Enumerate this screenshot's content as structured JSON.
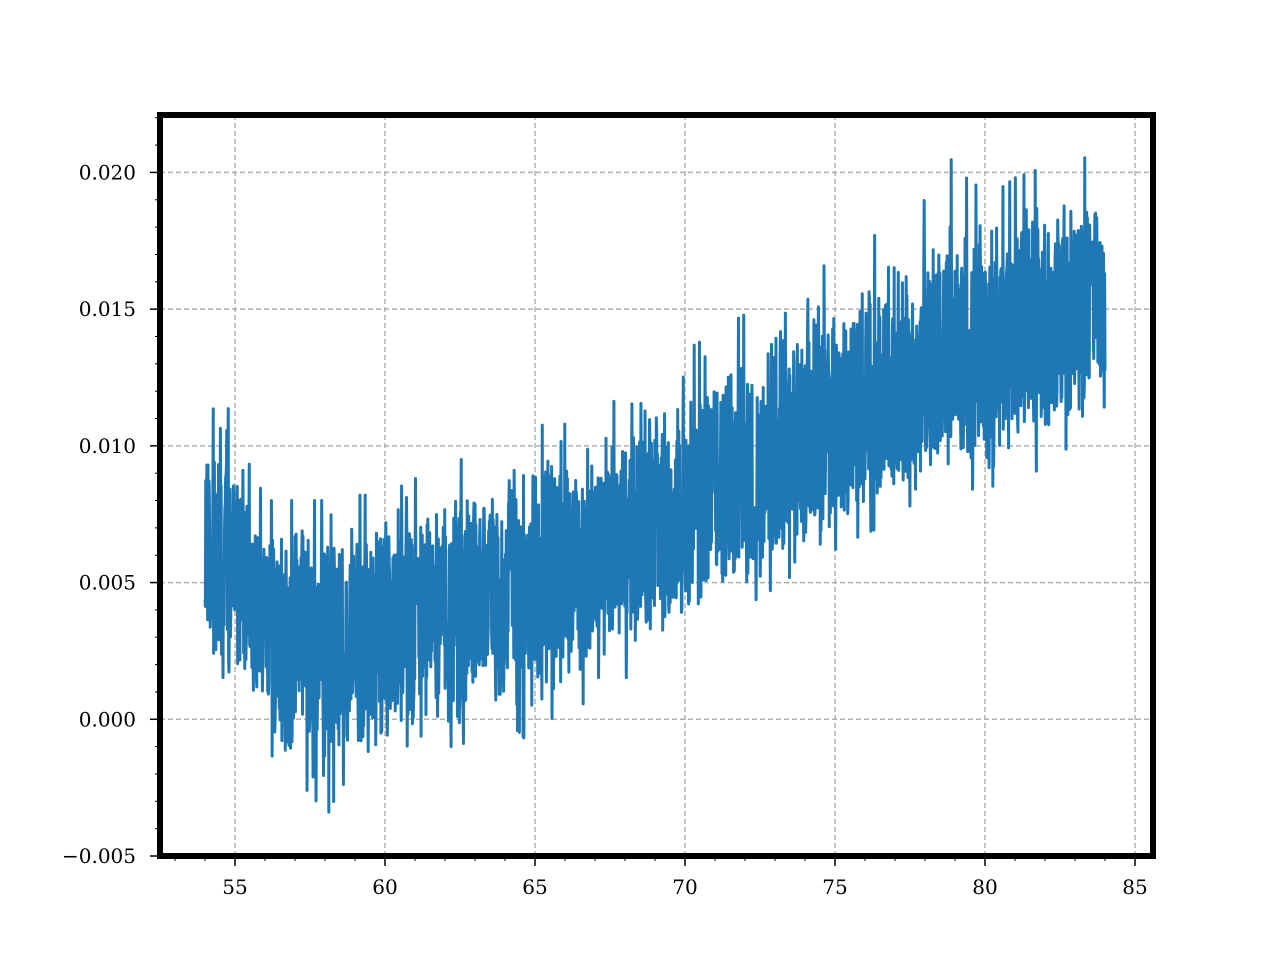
{
  "chart_data": {
    "type": "line",
    "title": "",
    "xlabel": "",
    "ylabel": "",
    "xlim": [
      52.5,
      85.6
    ],
    "ylim": [
      -0.005,
      0.0221
    ],
    "grid": true,
    "line_color": "#1f77b4",
    "x_ticks": [
      55,
      60,
      65,
      70,
      75,
      80,
      85
    ],
    "x_tick_labels": [
      "55",
      "60",
      "65",
      "70",
      "75",
      "80",
      "85"
    ],
    "y_ticks": [
      -0.005,
      0.0,
      0.005,
      0.01,
      0.015,
      0.02
    ],
    "y_tick_labels": [
      "−0.005",
      "0.000",
      "0.005",
      "0.010",
      "0.015",
      "0.020"
    ],
    "series": [
      {
        "x": [
          54.0,
          54.5,
          55.0,
          55.5,
          56.0,
          56.5,
          57.0,
          57.5,
          58.0,
          58.5,
          59.0,
          59.5,
          60.0,
          60.5,
          61.0,
          61.5,
          62.0,
          62.5,
          63.0,
          63.5,
          64.0,
          64.5,
          65.0,
          65.5,
          66.0,
          66.5,
          67.0,
          67.5,
          68.0,
          68.5,
          69.0,
          69.5,
          70.0,
          70.5,
          71.0,
          71.5,
          72.0,
          72.5,
          73.0,
          73.5,
          74.0,
          74.5,
          75.0,
          75.5,
          76.0,
          76.5,
          77.0,
          77.5,
          78.0,
          78.5,
          79.0,
          79.5,
          80.0,
          80.5,
          81.0,
          81.5,
          82.0,
          82.5,
          83.0,
          83.5,
          84.0
        ],
        "mean": [
          0.0062,
          0.0066,
          0.0062,
          0.0048,
          0.0033,
          0.0026,
          0.0026,
          0.0027,
          0.0028,
          0.003,
          0.0031,
          0.0033,
          0.0034,
          0.0036,
          0.0037,
          0.0039,
          0.0041,
          0.0042,
          0.0044,
          0.0046,
          0.0048,
          0.005,
          0.0052,
          0.0054,
          0.0056,
          0.0058,
          0.006,
          0.0062,
          0.0064,
          0.0067,
          0.0069,
          0.0071,
          0.0074,
          0.0076,
          0.0078,
          0.0081,
          0.0084,
          0.0087,
          0.009,
          0.0093,
          0.0096,
          0.0099,
          0.0102,
          0.0105,
          0.0108,
          0.0111,
          0.0114,
          0.0117,
          0.012,
          0.0123,
          0.0126,
          0.0129,
          0.0132,
          0.0135,
          0.0137,
          0.0139,
          0.0141,
          0.0143,
          0.0145,
          0.0147,
          0.0148
        ],
        "upper": [
          0.0108,
          0.0118,
          0.011,
          0.0095,
          0.008,
          0.008,
          0.008,
          0.008,
          0.008,
          0.008,
          0.0082,
          0.0082,
          0.0083,
          0.0085,
          0.0088,
          0.009,
          0.0092,
          0.0095,
          0.0095,
          0.0098,
          0.01,
          0.0102,
          0.011,
          0.0105,
          0.0108,
          0.011,
          0.0112,
          0.0115,
          0.012,
          0.0125,
          0.0128,
          0.0132,
          0.0135,
          0.0138,
          0.014,
          0.0145,
          0.0148,
          0.0155,
          0.0158,
          0.016,
          0.0163,
          0.0165,
          0.0168,
          0.0172,
          0.0175,
          0.0178,
          0.0182,
          0.0185,
          0.019,
          0.0195,
          0.0208,
          0.0195,
          0.0196,
          0.0194,
          0.0198,
          0.02,
          0.0202,
          0.0205,
          0.0206,
          0.0205,
          0.0203
        ],
        "lower": [
          0.002,
          0.0,
          0.001,
          0.0,
          -0.001,
          -0.003,
          -0.003,
          -0.0025,
          -0.0037,
          -0.0025,
          -0.002,
          -0.0025,
          -0.002,
          -0.0015,
          -0.0018,
          -0.0015,
          -0.001,
          -0.001,
          -0.0005,
          -0.0005,
          0.0,
          -0.0005,
          -0.0012,
          0.0,
          0.0002,
          0.0005,
          0.0008,
          0.001,
          0.0015,
          0.0018,
          0.002,
          0.0025,
          0.003,
          0.0032,
          0.0035,
          0.0038,
          0.004,
          0.0045,
          0.0048,
          0.0052,
          0.0055,
          0.0058,
          0.0062,
          0.0065,
          0.0068,
          0.007,
          0.0075,
          0.0078,
          0.0082,
          0.0082,
          0.0085,
          0.0085,
          0.008,
          0.009,
          0.0092,
          0.0095,
          0.0085,
          0.0098,
          0.01,
          0.0098,
          0.0115
        ]
      }
    ]
  }
}
